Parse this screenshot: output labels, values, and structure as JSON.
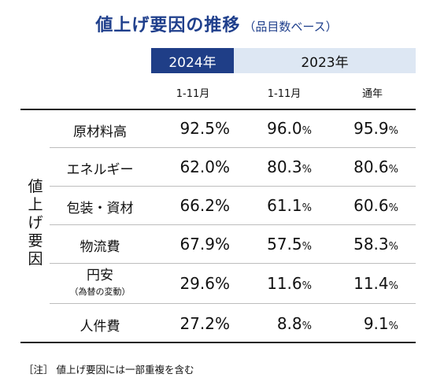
{
  "title": {
    "main": "値上げ要因の推移",
    "sub": "（品目数ベース）"
  },
  "header": {
    "year_current": "2024年",
    "year_previous": "2023年",
    "periods": [
      "1-11月",
      "1-11月",
      "通年"
    ]
  },
  "side_label_chars": [
    "値",
    "上",
    "げ",
    "要",
    "因"
  ],
  "table": {
    "columns": [
      "2024年 1-11月",
      "2023年 1-11月",
      "2023年 通年"
    ],
    "rows": [
      {
        "category": "原材料高",
        "note": "",
        "values": [
          "92.5",
          "96.0",
          "95.9"
        ]
      },
      {
        "category": "エネルギー",
        "note": "",
        "values": [
          "62.0",
          "80.3",
          "80.6"
        ]
      },
      {
        "category": "包装・資材",
        "note": "",
        "values": [
          "66.2",
          "61.1",
          "60.6"
        ]
      },
      {
        "category": "物流費",
        "note": "",
        "values": [
          "67.9",
          "57.5",
          "58.3"
        ]
      },
      {
        "category": "円安",
        "note": "（為替の変動）",
        "values": [
          "29.6",
          "11.6",
          "11.4"
        ]
      },
      {
        "category": "人件費",
        "note": "",
        "values": [
          "27.2",
          "8.8",
          "9.1"
        ]
      }
    ],
    "unit": "%"
  },
  "footnote": "［注］ 値上げ要因には一部重複を含む",
  "colors": {
    "title": "#1f3f8c",
    "header_current_bg": "#1f3e87",
    "header_previous_bg": "#dde7f3"
  }
}
